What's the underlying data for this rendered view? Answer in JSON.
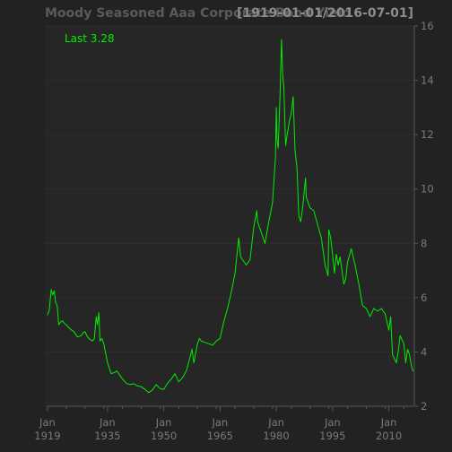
{
  "chart_data": {
    "type": "line",
    "title_left": "Moody Seasoned Aaa Corporate Bond Yield",
    "title_right": "[1919-01-01/2016-07-01]",
    "legend": "Last 3.28",
    "xlabel": "",
    "ylabel": "",
    "xlim": [
      1918.3,
      2016.8
    ],
    "ylim": [
      2,
      16
    ],
    "y_ticks": [
      2,
      4,
      6,
      8,
      10,
      12,
      14,
      16
    ],
    "y_tick_labels": [
      "2",
      "4",
      "6",
      "8",
      "10",
      "12",
      "14",
      "16"
    ],
    "x_ticks": [
      1919,
      1935,
      1950,
      1965,
      1980,
      1995,
      2010
    ],
    "x_tick_labels": [
      [
        "Jan",
        "1919"
      ],
      [
        "Jan",
        "1935"
      ],
      [
        "Jan",
        "1950"
      ],
      [
        "Jan",
        "1965"
      ],
      [
        "Jan",
        "1980"
      ],
      [
        "Jan",
        "1995"
      ],
      [
        "Jan",
        "2010"
      ]
    ],
    "grid": true,
    "colors": {
      "background": "#222222",
      "panel": "#262626",
      "line": "#00ee00",
      "grid": "#2e2e2e",
      "axis": "#555555",
      "text": "#7a7a7a",
      "legend": "#00ee00"
    },
    "series": [
      {
        "x": [
          1919.0,
          1919.5,
          1920.0,
          1920.4,
          1920.8,
          1921.2,
          1921.6,
          1922.0,
          1922.5,
          1923.0,
          1923.5,
          1924.0,
          1925.0,
          1926.0,
          1927.0,
          1928.0,
          1928.5,
          1929.0,
          1929.5,
          1930.0,
          1931.0,
          1931.5,
          1932.0,
          1932.3,
          1932.7,
          1933.0,
          1933.5,
          1934.0,
          1935.0,
          1936.0,
          1937.0,
          1937.5,
          1938.0,
          1939.0,
          1940.0,
          1941.0,
          1942.0,
          1943.0,
          1944.0,
          1945.0,
          1946.0,
          1947.0,
          1948.0,
          1949.0,
          1950.0,
          1951.0,
          1952.0,
          1953.0,
          1954.0,
          1955.0,
          1956.0,
          1957.0,
          1957.5,
          1958.0,
          1959.0,
          1959.5,
          1960.0,
          1961.0,
          1962.0,
          1963.0,
          1964.0,
          1965.0,
          1966.0,
          1967.0,
          1968.0,
          1969.0,
          1970.0,
          1970.5,
          1971.0,
          1972.0,
          1973.0,
          1974.0,
          1974.8,
          1975.0,
          1976.0,
          1977.0,
          1978.0,
          1979.0,
          1979.8,
          1980.0,
          1980.2,
          1980.5,
          1981.0,
          1981.4,
          1981.7,
          1982.0,
          1982.5,
          1982.9,
          1983.5,
          1984.0,
          1984.5,
          1985.0,
          1985.5,
          1986.0,
          1986.5,
          1987.0,
          1987.8,
          1988.0,
          1989.0,
          1990.0,
          1991.0,
          1992.0,
          1993.0,
          1993.8,
          1994.0,
          1994.5,
          1995.0,
          1995.5,
          1996.0,
          1996.5,
          1997.0,
          1998.0,
          1998.5,
          1999.0,
          2000.0,
          2001.0,
          2002.0,
          2003.0,
          2004.0,
          2005.0,
          2006.0,
          2007.0,
          2008.0,
          2009.0,
          2010.0,
          2010.5,
          2011.0,
          2012.0,
          2012.5,
          2013.0,
          2014.0,
          2014.5,
          2015.0,
          2015.5,
          2016.0,
          2016.5
        ],
        "y": [
          5.35,
          5.55,
          6.3,
          6.1,
          6.25,
          5.8,
          5.7,
          5.0,
          5.1,
          5.15,
          5.05,
          5.0,
          4.85,
          4.75,
          4.55,
          4.6,
          4.7,
          4.75,
          4.6,
          4.5,
          4.4,
          4.5,
          5.3,
          5.0,
          5.45,
          4.4,
          4.5,
          4.3,
          3.6,
          3.2,
          3.25,
          3.3,
          3.2,
          3.0,
          2.85,
          2.8,
          2.83,
          2.75,
          2.72,
          2.62,
          2.5,
          2.6,
          2.8,
          2.65,
          2.62,
          2.85,
          3.0,
          3.2,
          2.9,
          3.05,
          3.3,
          3.8,
          4.1,
          3.6,
          4.3,
          4.5,
          4.4,
          4.35,
          4.3,
          4.25,
          4.4,
          4.5,
          5.1,
          5.6,
          6.2,
          6.9,
          8.2,
          7.5,
          7.4,
          7.2,
          7.4,
          8.6,
          9.2,
          8.8,
          8.4,
          8.0,
          8.8,
          9.5,
          11.2,
          13.0,
          11.8,
          11.5,
          13.5,
          15.5,
          14.2,
          13.8,
          11.6,
          12.0,
          12.5,
          12.8,
          13.4,
          11.4,
          10.8,
          9.0,
          8.8,
          9.3,
          10.4,
          9.7,
          9.3,
          9.2,
          8.7,
          8.2,
          7.2,
          6.8,
          8.5,
          8.2,
          7.6,
          6.9,
          7.6,
          7.2,
          7.5,
          6.5,
          6.7,
          7.3,
          7.8,
          7.2,
          6.5,
          5.7,
          5.6,
          5.3,
          5.6,
          5.5,
          5.6,
          5.4,
          4.8,
          5.3,
          3.9,
          3.6,
          4.0,
          4.6,
          4.3,
          3.6,
          4.1,
          3.9,
          3.5,
          3.28
        ]
      }
    ]
  }
}
